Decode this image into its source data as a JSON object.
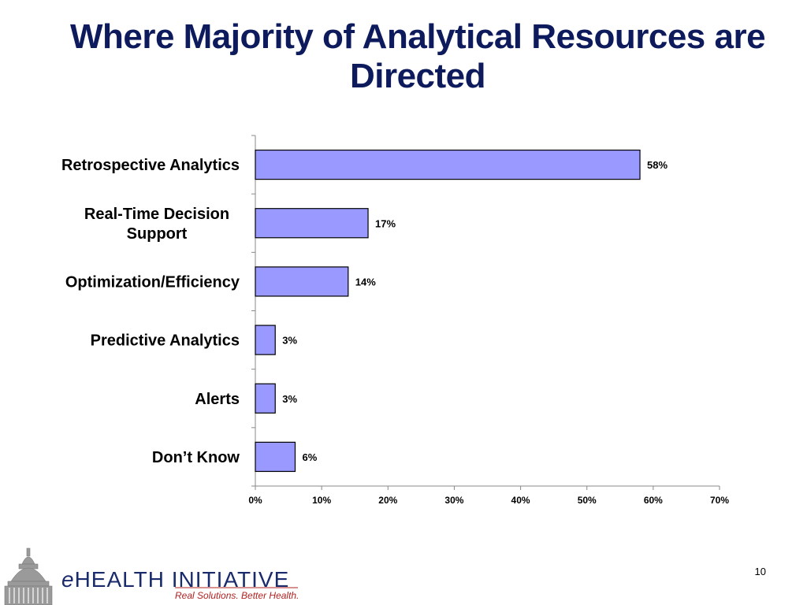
{
  "slide": {
    "title": "Where Majority of Analytical Resources are Directed",
    "page_number": "10"
  },
  "logo": {
    "name_prefix": "e",
    "name_rest": "HEALTH INITIATIVE",
    "tagline": "Real Solutions. Better Health."
  },
  "colors": {
    "title": "#0d1a5c",
    "bar_fill": "#9999ff",
    "bar_stroke": "#000000"
  },
  "chart_data": {
    "type": "bar",
    "orientation": "horizontal",
    "title": "",
    "xlabel": "",
    "ylabel": "",
    "categories": [
      "Retrospective Analytics",
      "Real-Time Decision Support",
      "Optimization/Efficiency",
      "Predictive Analytics",
      "Alerts",
      "Don’t Know"
    ],
    "category_lines": [
      [
        "Retrospective Analytics"
      ],
      [
        "Real-Time Decision",
        "Support"
      ],
      [
        "Optimization/Efficiency"
      ],
      [
        "Predictive Analytics"
      ],
      [
        "Alerts"
      ],
      [
        "Don’t Know"
      ]
    ],
    "values": [
      58,
      17,
      14,
      3,
      3,
      6
    ],
    "data_labels": [
      "58%",
      "17%",
      "14%",
      "3%",
      "3%",
      "6%"
    ],
    "xlim": [
      0,
      70
    ],
    "xticks": [
      0,
      10,
      20,
      30,
      40,
      50,
      60,
      70
    ],
    "xtick_labels": [
      "0%",
      "10%",
      "20%",
      "30%",
      "40%",
      "50%",
      "60%",
      "70%"
    ],
    "grid": false,
    "legend": "none"
  }
}
